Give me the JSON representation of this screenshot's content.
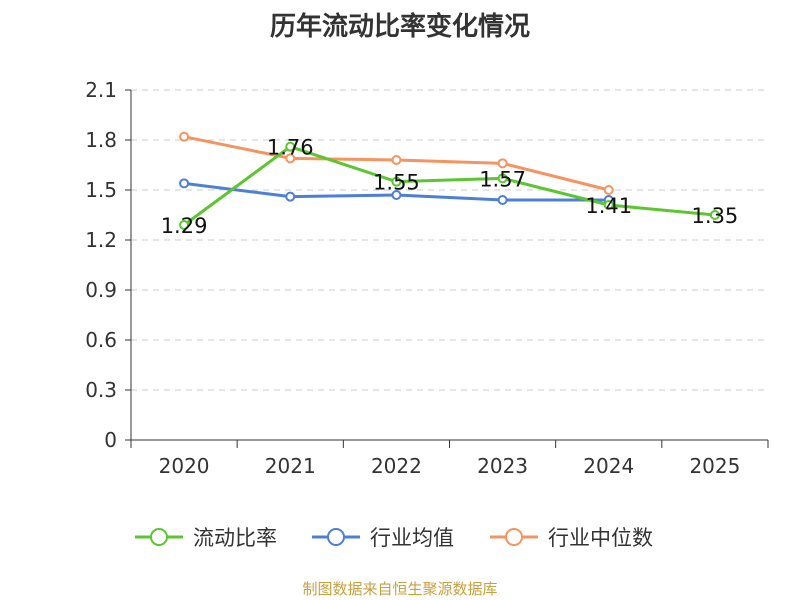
{
  "chart_data": {
    "type": "line",
    "title": "历年流动比率变化情况",
    "categories": [
      "2020",
      "2021",
      "2022",
      "2023",
      "2024",
      "2025"
    ],
    "ylim": [
      0,
      2.1
    ],
    "yticks": [
      "0",
      "0.3",
      "0.6",
      "0.9",
      "1.2",
      "1.5",
      "1.8",
      "2.1"
    ],
    "grid": true,
    "legend_position": "bottom",
    "series": [
      {
        "name": "流动比率",
        "color": "#5cc630",
        "values": [
          1.29,
          1.76,
          1.55,
          1.57,
          1.41,
          1.35
        ],
        "labels": [
          "1.29",
          "1.76",
          "1.55",
          "1.57",
          "1.41",
          "1.35"
        ]
      },
      {
        "name": "行业均值",
        "color": "#4e7fd8",
        "values": [
          1.54,
          1.46,
          1.47,
          1.44,
          1.44,
          null
        ]
      },
      {
        "name": "行业中位数",
        "color": "#f59460",
        "values": [
          1.82,
          1.69,
          1.68,
          1.66,
          1.5,
          null
        ]
      }
    ]
  },
  "footer": "制图数据来自恒生聚源数据库"
}
